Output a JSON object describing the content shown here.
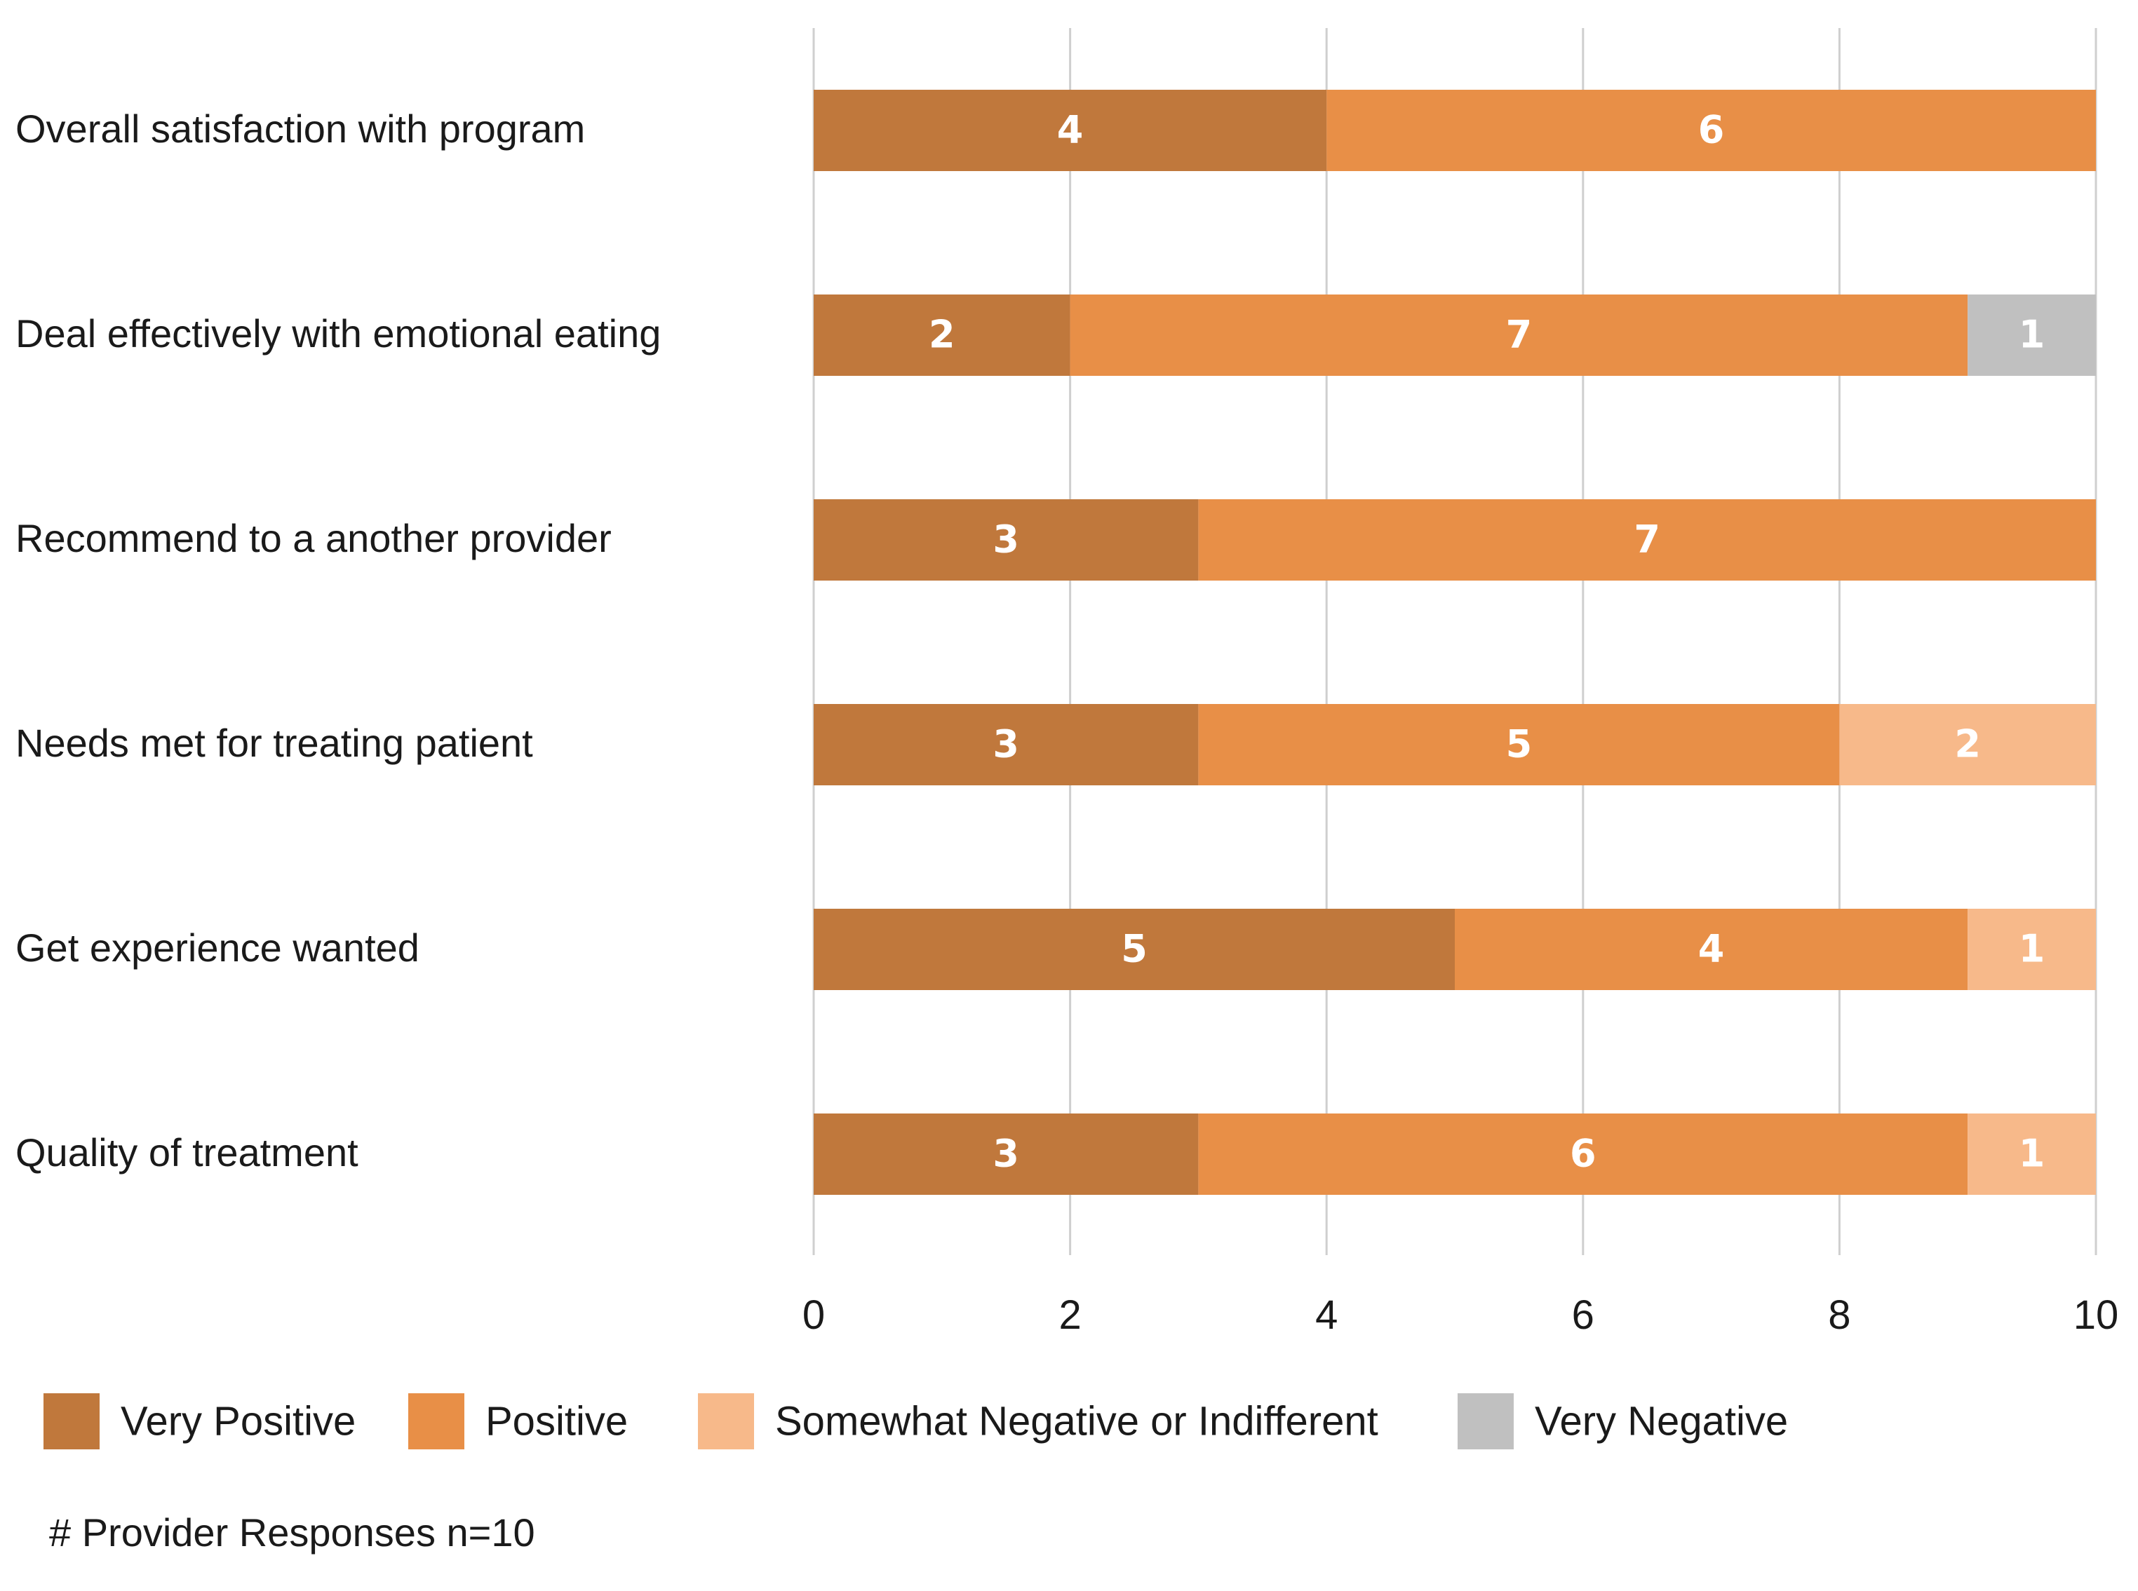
{
  "chart_data": {
    "type": "bar",
    "orientation": "horizontal",
    "stacked": true,
    "categories": [
      "Overall satisfaction with program",
      "Deal effectively with emotional eating",
      "Recommend to a another provider",
      "Needs met for treating patient",
      "Get experience wanted",
      "Quality of treatment"
    ],
    "series": [
      {
        "name": "Very Positive",
        "color": "#c0783c",
        "values": [
          4,
          2,
          3,
          3,
          5,
          3
        ]
      },
      {
        "name": "Positive",
        "color": "#e88f47",
        "values": [
          6,
          7,
          7,
          5,
          4,
          6
        ]
      },
      {
        "name": "Somewhat Negative or Indifferent",
        "color": "#f7b98a",
        "values": [
          0,
          0,
          0,
          2,
          1,
          1
        ]
      },
      {
        "name": "Very Negative",
        "color": "#c0c0c0",
        "values": [
          0,
          1,
          0,
          0,
          0,
          0
        ]
      }
    ],
    "xlim": [
      0,
      10
    ],
    "xticks": [
      0,
      2,
      4,
      6,
      8,
      10
    ],
    "xtick_labels": [
      "0",
      "2",
      "4",
      "6",
      "8",
      "10"
    ],
    "grid": true,
    "legend_position": "bottom",
    "note": "# Provider Responses n=10",
    "title": "",
    "xlabel": "",
    "ylabel": ""
  }
}
